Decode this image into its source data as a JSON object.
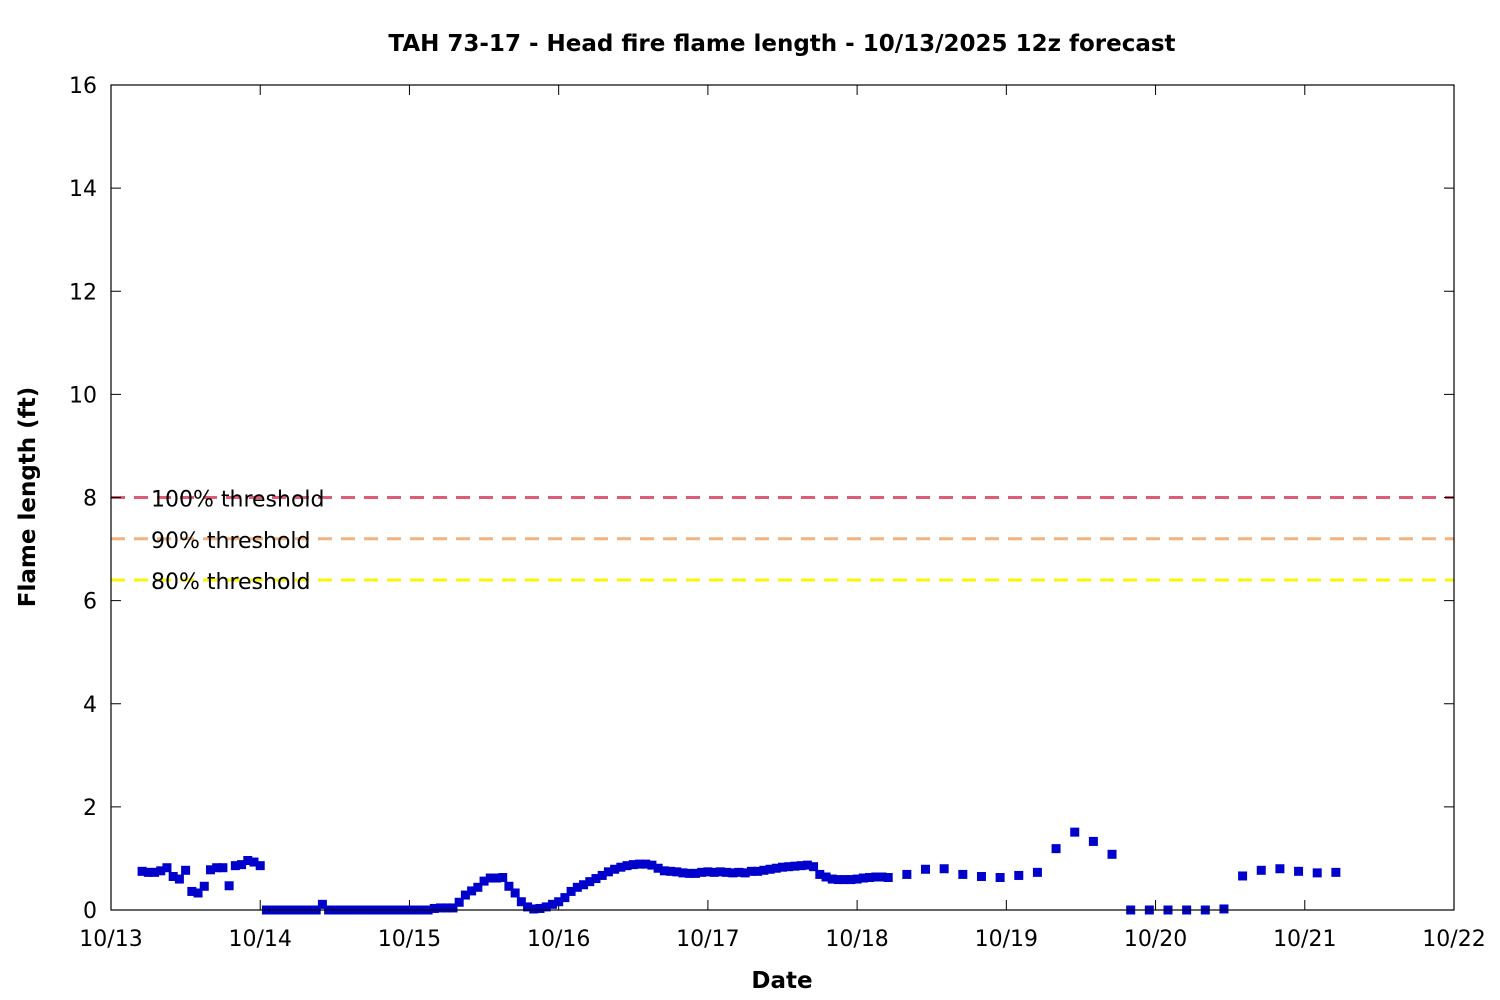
{
  "chart_data": {
    "type": "scatter",
    "title": "TAH 73-17 - Head fire flame length - 10/13/2025 12z forecast",
    "xlabel": "Date",
    "ylabel": "Flame length (ft)",
    "x_unit": "days",
    "xlim": [
      "10/13 00:00",
      "10/22 00:00"
    ],
    "ylim": [
      0,
      16
    ],
    "x_ticks": [
      "10/13",
      "10/14",
      "10/15",
      "10/16",
      "10/17",
      "10/18",
      "10/19",
      "10/20",
      "10/21",
      "10/22"
    ],
    "y_ticks": [
      "0",
      "2",
      "4",
      "6",
      "8",
      "10",
      "12",
      "14",
      "16"
    ],
    "grid": false,
    "thresholds": [
      {
        "label": "100% threshold",
        "value": 8.0,
        "color": "#dd5d78"
      },
      {
        "label": "90% threshold",
        "value": 7.2,
        "color": "#f4b27e"
      },
      {
        "label": "80% threshold",
        "value": 6.4,
        "color": "#f7f707"
      }
    ],
    "series": [
      {
        "color": "#0000cc",
        "marker": "square",
        "points": [
          [
            "10/13 05:00",
            0.75
          ],
          [
            "10/13 06:00",
            0.73
          ],
          [
            "10/13 07:00",
            0.73
          ],
          [
            "10/13 08:00",
            0.76
          ],
          [
            "10/13 09:00",
            0.82
          ],
          [
            "10/13 10:00",
            0.65
          ],
          [
            "10/13 11:00",
            0.6
          ],
          [
            "10/13 12:00",
            0.77
          ],
          [
            "10/13 13:00",
            0.36
          ],
          [
            "10/13 14:00",
            0.33
          ],
          [
            "10/13 15:00",
            0.46
          ],
          [
            "10/13 16:00",
            0.78
          ],
          [
            "10/13 17:00",
            0.82
          ],
          [
            "10/13 18:00",
            0.82
          ],
          [
            "10/13 19:00",
            0.47
          ],
          [
            "10/13 20:00",
            0.86
          ],
          [
            "10/13 21:00",
            0.88
          ],
          [
            "10/13 22:00",
            0.96
          ],
          [
            "10/13 23:00",
            0.93
          ],
          [
            "10/14 00:00",
            0.86
          ],
          [
            "10/14 01:00",
            0.0
          ],
          [
            "10/14 02:00",
            0.0
          ],
          [
            "10/14 03:00",
            0.0
          ],
          [
            "10/14 04:00",
            0.0
          ],
          [
            "10/14 05:00",
            0.0
          ],
          [
            "10/14 06:00",
            0.0
          ],
          [
            "10/14 07:00",
            0.0
          ],
          [
            "10/14 08:00",
            0.0
          ],
          [
            "10/14 09:00",
            0.0
          ],
          [
            "10/14 10:00",
            0.11
          ],
          [
            "10/14 11:00",
            0.0
          ],
          [
            "10/14 12:00",
            0.0
          ],
          [
            "10/14 13:00",
            0.0
          ],
          [
            "10/14 14:00",
            0.0
          ],
          [
            "10/14 15:00",
            0.0
          ],
          [
            "10/14 16:00",
            0.0
          ],
          [
            "10/14 17:00",
            0.0
          ],
          [
            "10/14 18:00",
            0.0
          ],
          [
            "10/14 19:00",
            0.0
          ],
          [
            "10/14 20:00",
            0.0
          ],
          [
            "10/14 21:00",
            0.0
          ],
          [
            "10/14 22:00",
            0.0
          ],
          [
            "10/14 23:00",
            0.0
          ],
          [
            "10/15 00:00",
            0.0
          ],
          [
            "10/15 01:00",
            0.0
          ],
          [
            "10/15 02:00",
            0.0
          ],
          [
            "10/15 03:00",
            0.0
          ],
          [
            "10/15 04:00",
            0.03
          ],
          [
            "10/15 05:00",
            0.04
          ],
          [
            "10/15 06:00",
            0.04
          ],
          [
            "10/15 07:00",
            0.04
          ],
          [
            "10/15 08:00",
            0.15
          ],
          [
            "10/15 09:00",
            0.29
          ],
          [
            "10/15 10:00",
            0.37
          ],
          [
            "10/15 11:00",
            0.44
          ],
          [
            "10/15 12:00",
            0.56
          ],
          [
            "10/15 13:00",
            0.62
          ],
          [
            "10/15 14:00",
            0.62
          ],
          [
            "10/15 15:00",
            0.63
          ],
          [
            "10/15 16:00",
            0.46
          ],
          [
            "10/15 17:00",
            0.33
          ],
          [
            "10/15 18:00",
            0.16
          ],
          [
            "10/15 19:00",
            0.06
          ],
          [
            "10/15 20:00",
            0.02
          ],
          [
            "10/15 21:00",
            0.03
          ],
          [
            "10/15 22:00",
            0.06
          ],
          [
            "10/15 23:00",
            0.11
          ],
          [
            "10/16 00:00",
            0.16
          ],
          [
            "10/16 01:00",
            0.24
          ],
          [
            "10/16 02:00",
            0.36
          ],
          [
            "10/16 03:00",
            0.44
          ],
          [
            "10/16 04:00",
            0.49
          ],
          [
            "10/16 05:00",
            0.55
          ],
          [
            "10/16 06:00",
            0.61
          ],
          [
            "10/16 07:00",
            0.67
          ],
          [
            "10/16 08:00",
            0.74
          ],
          [
            "10/16 09:00",
            0.79
          ],
          [
            "10/16 10:00",
            0.83
          ],
          [
            "10/16 11:00",
            0.86
          ],
          [
            "10/16 12:00",
            0.88
          ],
          [
            "10/16 13:00",
            0.89
          ],
          [
            "10/16 14:00",
            0.89
          ],
          [
            "10/16 15:00",
            0.87
          ],
          [
            "10/16 16:00",
            0.81
          ],
          [
            "10/16 17:00",
            0.76
          ],
          [
            "10/16 18:00",
            0.75
          ],
          [
            "10/16 19:00",
            0.74
          ],
          [
            "10/16 20:00",
            0.72
          ],
          [
            "10/16 21:00",
            0.71
          ],
          [
            "10/16 22:00",
            0.71
          ],
          [
            "10/16 23:00",
            0.73
          ],
          [
            "10/17 00:00",
            0.74
          ],
          [
            "10/17 01:00",
            0.73
          ],
          [
            "10/17 02:00",
            0.74
          ],
          [
            "10/17 03:00",
            0.73
          ],
          [
            "10/17 04:00",
            0.72
          ],
          [
            "10/17 05:00",
            0.73
          ],
          [
            "10/17 06:00",
            0.72
          ],
          [
            "10/17 07:00",
            0.75
          ],
          [
            "10/17 08:00",
            0.75
          ],
          [
            "10/17 09:00",
            0.77
          ],
          [
            "10/17 10:00",
            0.79
          ],
          [
            "10/17 11:00",
            0.81
          ],
          [
            "10/17 12:00",
            0.83
          ],
          [
            "10/17 13:00",
            0.84
          ],
          [
            "10/17 14:00",
            0.85
          ],
          [
            "10/17 15:00",
            0.86
          ],
          [
            "10/17 16:00",
            0.87
          ],
          [
            "10/17 17:00",
            0.84
          ],
          [
            "10/17 18:00",
            0.69
          ],
          [
            "10/17 19:00",
            0.64
          ],
          [
            "10/17 20:00",
            0.6
          ],
          [
            "10/17 21:00",
            0.59
          ],
          [
            "10/17 22:00",
            0.59
          ],
          [
            "10/17 23:00",
            0.59
          ],
          [
            "10/18 00:00",
            0.6
          ],
          [
            "10/18 01:00",
            0.62
          ],
          [
            "10/18 02:00",
            0.63
          ],
          [
            "10/18 03:00",
            0.64
          ],
          [
            "10/18 04:00",
            0.64
          ],
          [
            "10/18 05:00",
            0.63
          ],
          [
            "10/18 08:00",
            0.69
          ],
          [
            "10/18 11:00",
            0.79
          ],
          [
            "10/18 14:00",
            0.8
          ],
          [
            "10/18 17:00",
            0.69
          ],
          [
            "10/18 20:00",
            0.65
          ],
          [
            "10/18 23:00",
            0.63
          ],
          [
            "10/19 02:00",
            0.67
          ],
          [
            "10/19 05:00",
            0.73
          ],
          [
            "10/19 08:00",
            1.19
          ],
          [
            "10/19 11:00",
            1.51
          ],
          [
            "10/19 14:00",
            1.33
          ],
          [
            "10/19 17:00",
            1.08
          ],
          [
            "10/19 20:00",
            0.0
          ],
          [
            "10/19 23:00",
            0.0
          ],
          [
            "10/20 02:00",
            0.0
          ],
          [
            "10/20 05:00",
            0.0
          ],
          [
            "10/20 08:00",
            0.0
          ],
          [
            "10/20 11:00",
            0.02
          ],
          [
            "10/20 14:00",
            0.66
          ],
          [
            "10/20 17:00",
            0.77
          ],
          [
            "10/20 20:00",
            0.8
          ],
          [
            "10/20 23:00",
            0.75
          ],
          [
            "10/21 02:00",
            0.72
          ],
          [
            "10/21 05:00",
            0.73
          ]
        ]
      }
    ]
  }
}
